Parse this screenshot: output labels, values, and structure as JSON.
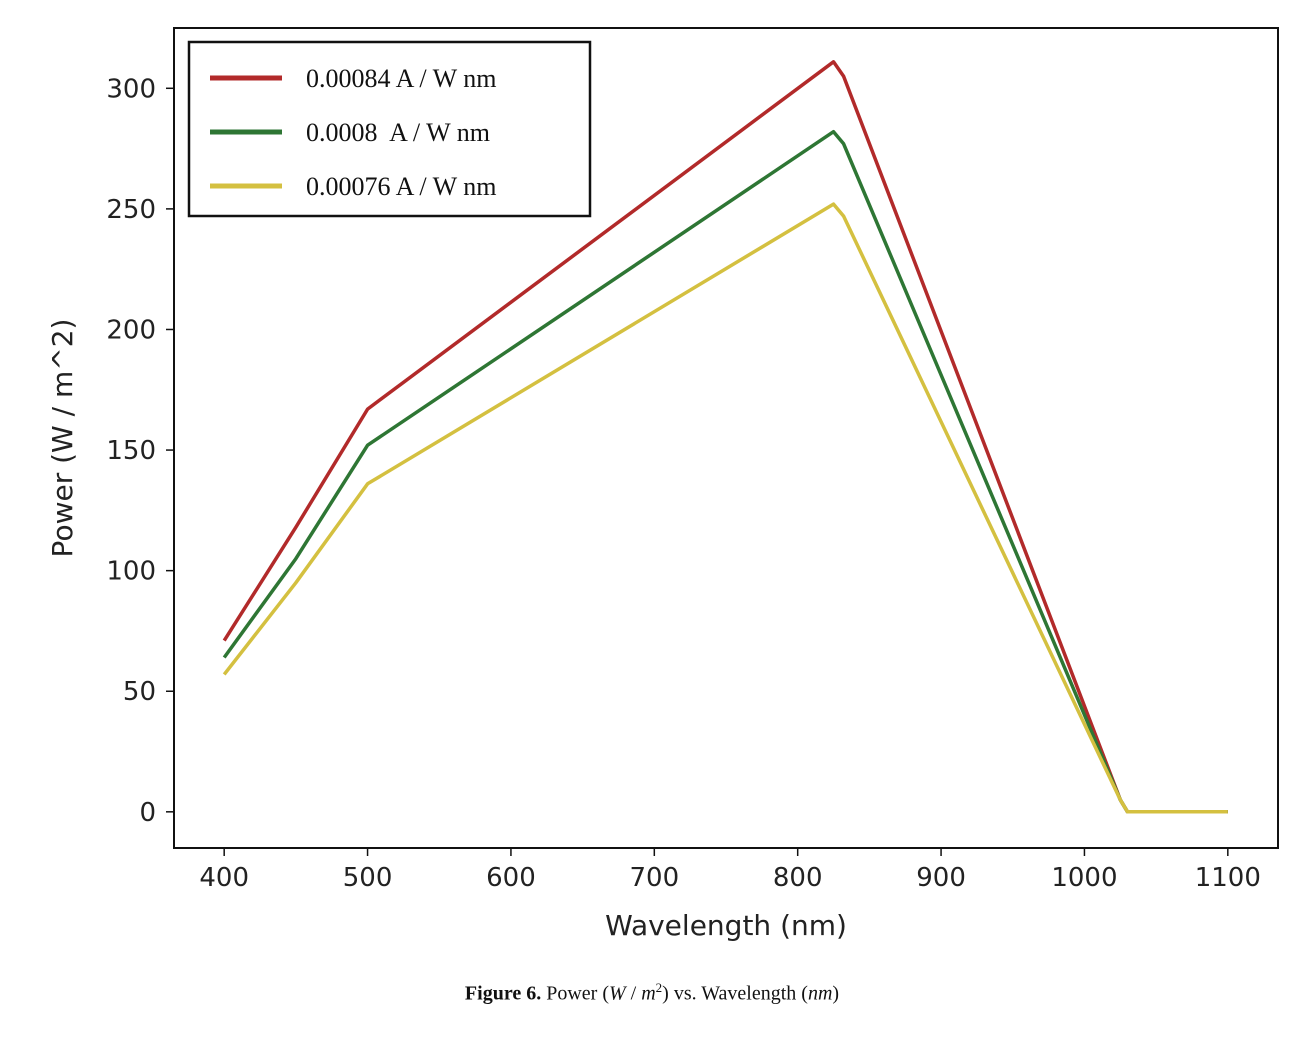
{
  "chart_data": {
    "type": "line",
    "xlabel": "Wavelength (nm)",
    "ylabel": "Power (W / m^2)",
    "xlim": [
      365,
      1135
    ],
    "ylim": [
      -15,
      325
    ],
    "xticks": [
      400,
      500,
      600,
      700,
      800,
      900,
      1000,
      1100
    ],
    "yticks": [
      0,
      50,
      100,
      150,
      200,
      250,
      300
    ],
    "legend_position": "top-left",
    "grid": false,
    "series": [
      {
        "name": "0.00084 A / W nm",
        "color": "#b22a2a",
        "x": [
          400,
          450,
          500,
          825,
          832,
          1025,
          1030,
          1100
        ],
        "y": [
          71,
          118,
          167,
          311,
          305,
          5,
          0,
          0
        ]
      },
      {
        "name": "0.0008  A / W nm",
        "color": "#2e7634",
        "x": [
          400,
          450,
          500,
          825,
          832,
          1025,
          1030,
          1100
        ],
        "y": [
          64,
          105,
          152,
          282,
          277,
          5,
          0,
          0
        ]
      },
      {
        "name": "0.00076 A / W nm",
        "color": "#d4c040",
        "x": [
          400,
          450,
          500,
          825,
          832,
          1025,
          1030,
          1100
        ],
        "y": [
          57,
          95,
          136,
          252,
          247,
          5,
          0,
          0
        ]
      }
    ]
  },
  "caption": {
    "label": "Figure 6.",
    "prefix": " Power (",
    "w": "W",
    "slash": " / ",
    "m": "m",
    "sup": "2",
    "mid": ") vs. Wavelength (",
    "nm": "nm",
    "suffix": ")"
  }
}
